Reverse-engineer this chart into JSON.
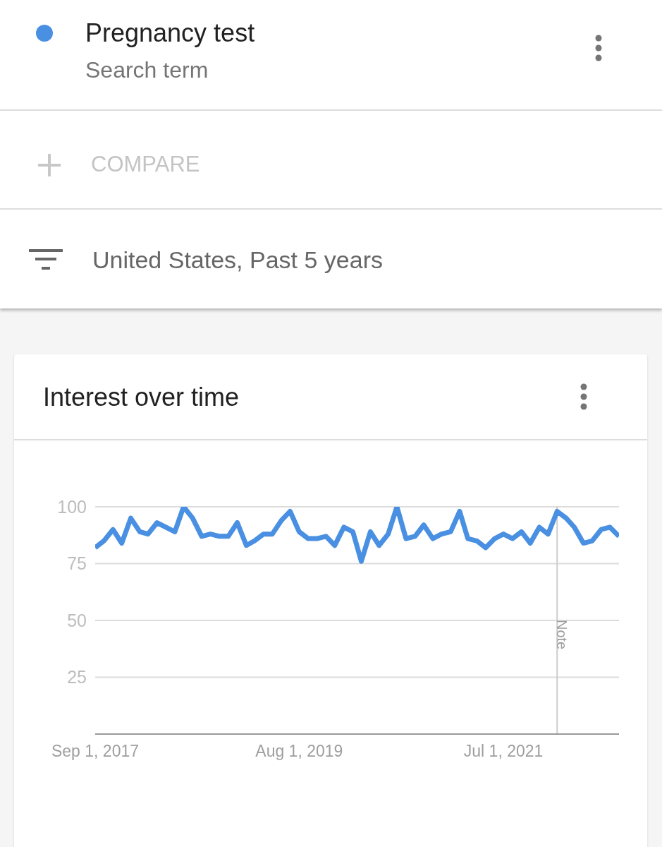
{
  "chart_data": {
    "type": "line",
    "title": "Interest over time",
    "annotations": [
      "Search term",
      "COMPARE",
      "United States, Past 5 years"
    ],
    "x": [
      "2017-09",
      "2017-10",
      "2017-11",
      "2017-12",
      "2018-01",
      "2018-02",
      "2018-03",
      "2018-04",
      "2018-05",
      "2018-06",
      "2018-07",
      "2018-08",
      "2018-09",
      "2018-10",
      "2018-11",
      "2018-12",
      "2019-01",
      "2019-02",
      "2019-03",
      "2019-04",
      "2019-05",
      "2019-06",
      "2019-07",
      "2019-08",
      "2019-09",
      "2019-10",
      "2019-11",
      "2019-12",
      "2020-01",
      "2020-02",
      "2020-03",
      "2020-04",
      "2020-05",
      "2020-06",
      "2020-07",
      "2020-08",
      "2020-09",
      "2020-10",
      "2020-11",
      "2020-12",
      "2021-01",
      "2021-02",
      "2021-03",
      "2021-04",
      "2021-05",
      "2021-06",
      "2021-07",
      "2021-08",
      "2021-09",
      "2021-10",
      "2021-11",
      "2021-12",
      "2022-01",
      "2022-02",
      "2022-03",
      "2022-04",
      "2022-05",
      "2022-06",
      "2022-07",
      "2022-08"
    ],
    "series": [
      {
        "name": "Pregnancy test",
        "color": "#4a90e2",
        "values": [
          82,
          85,
          90,
          84,
          95,
          89,
          88,
          93,
          91,
          89,
          100,
          95,
          87,
          88,
          87,
          87,
          93,
          83,
          85,
          88,
          88,
          94,
          98,
          89,
          86,
          86,
          87,
          83,
          91,
          89,
          76,
          89,
          83,
          88,
          100,
          86,
          87,
          92,
          86,
          88,
          89,
          98,
          86,
          85,
          82,
          86,
          88,
          86,
          89,
          84,
          91,
          88,
          98,
          95,
          91,
          84,
          85,
          90,
          91,
          87
        ]
      }
    ],
    "xlim": [
      "2017-09",
      "2022-08"
    ],
    "xticks": [
      {
        "value": "2017-09",
        "label": "Sep 1, 2017"
      },
      {
        "value": "2019-08",
        "label": "Aug 1, 2019"
      },
      {
        "value": "2021-07",
        "label": "Jul 1, 2021"
      }
    ],
    "ylim": [
      0,
      100
    ],
    "yticks": [
      25,
      50,
      75,
      100
    ],
    "ref_lines": [
      {
        "axis": "x",
        "value": "2022-01",
        "label": "Note",
        "color": "#cccccc"
      }
    ],
    "grid": "y",
    "legend": "top",
    "marker": "none",
    "line_style": "solid"
  }
}
